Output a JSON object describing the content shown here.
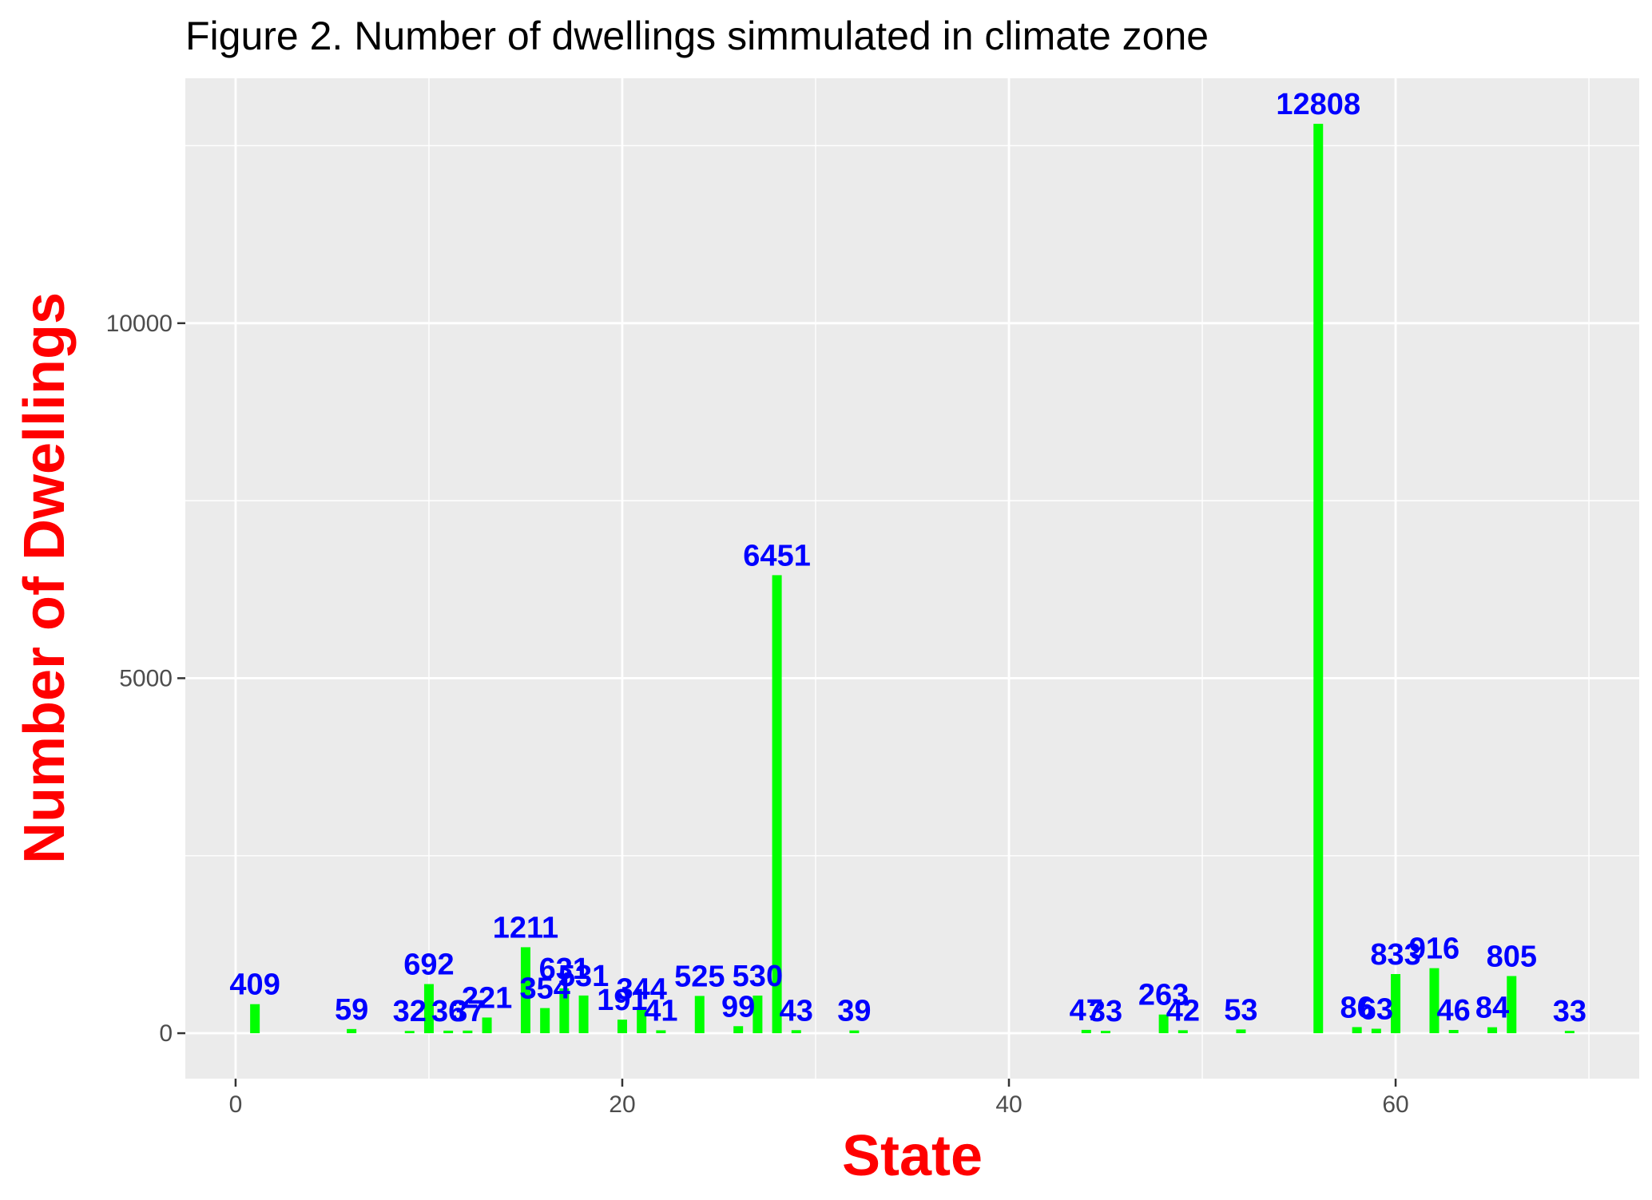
{
  "chart_data": {
    "type": "bar",
    "title": "Figure 2. Number of dwellings simmulated in climate zone",
    "xlabel": "State",
    "ylabel": "Number of Dwellings",
    "xlim": [
      -2.6,
      72.6
    ],
    "ylim": [
      -640,
      13450
    ],
    "x_ticks": [
      0,
      20,
      40,
      60
    ],
    "x_tick_labels": [
      "0",
      "20",
      "40",
      "60"
    ],
    "y_ticks": [
      0,
      5000,
      10000
    ],
    "y_tick_labels": [
      "0",
      "5000",
      "10000"
    ],
    "grid": true,
    "legend": "none",
    "colors": {
      "bar": "#00ff00",
      "label": "#0000ff",
      "axis_title": "#ff0000",
      "panel": "#ebebeb",
      "grid": "#ffffff"
    },
    "points": [
      {
        "x": 1,
        "value": 409,
        "label": "409"
      },
      {
        "x": 6,
        "value": 59,
        "label": "59"
      },
      {
        "x": 9,
        "value": 32,
        "label": "32"
      },
      {
        "x": 10,
        "value": 692,
        "label": "692"
      },
      {
        "x": 11,
        "value": 36,
        "label": "36"
      },
      {
        "x": 12,
        "value": 37,
        "label": "37"
      },
      {
        "x": 13,
        "value": 221,
        "label": "221"
      },
      {
        "x": 15,
        "value": 1211,
        "label": "1211"
      },
      {
        "x": 16,
        "value": 354,
        "label": "354"
      },
      {
        "x": 17,
        "value": 631,
        "label": "631"
      },
      {
        "x": 18,
        "value": 531,
        "label": "531"
      },
      {
        "x": 20,
        "value": 191,
        "label": "191"
      },
      {
        "x": 21,
        "value": 344,
        "label": "344"
      },
      {
        "x": 22,
        "value": 41,
        "label": "41"
      },
      {
        "x": 24,
        "value": 525,
        "label": "525"
      },
      {
        "x": 26,
        "value": 99,
        "label": "99"
      },
      {
        "x": 27,
        "value": 530,
        "label": "530"
      },
      {
        "x": 28,
        "value": 6451,
        "label": "6451"
      },
      {
        "x": 29,
        "value": 43,
        "label": "43"
      },
      {
        "x": 32,
        "value": 39,
        "label": "39"
      },
      {
        "x": 44,
        "value": 47,
        "label": "47"
      },
      {
        "x": 45,
        "value": 33,
        "label": "33"
      },
      {
        "x": 48,
        "value": 263,
        "label": "263"
      },
      {
        "x": 49,
        "value": 42,
        "label": "42"
      },
      {
        "x": 52,
        "value": 53,
        "label": "53"
      },
      {
        "x": 56,
        "value": 12808,
        "label": "12808"
      },
      {
        "x": 58,
        "value": 86,
        "label": "86"
      },
      {
        "x": 59,
        "value": 63,
        "label": "63"
      },
      {
        "x": 60,
        "value": 833,
        "label": "833"
      },
      {
        "x": 62,
        "value": 916,
        "label": "916"
      },
      {
        "x": 63,
        "value": 46,
        "label": "46"
      },
      {
        "x": 65,
        "value": 84,
        "label": "84"
      },
      {
        "x": 66,
        "value": 805,
        "label": "805"
      },
      {
        "x": 69,
        "value": 33,
        "label": "33"
      }
    ]
  }
}
